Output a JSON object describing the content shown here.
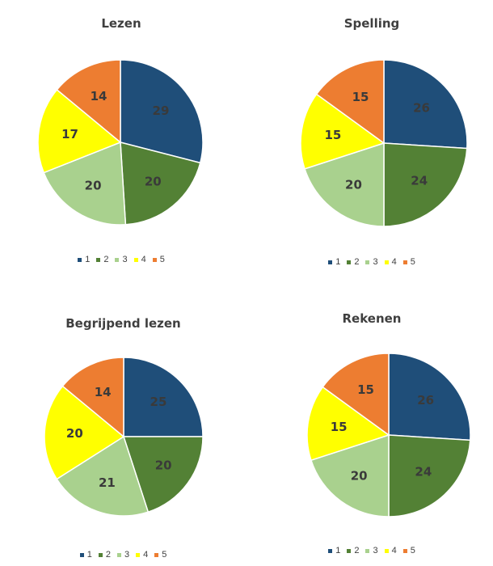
{
  "colors": {
    "1": "#1f4e79",
    "2": "#538135",
    "3": "#a9d18e",
    "4": "#ffff00",
    "5": "#ed7d31"
  },
  "legend_labels": [
    "1",
    "2",
    "3",
    "4",
    "5"
  ],
  "chart_data": [
    {
      "type": "pie",
      "title": "Lezen",
      "categories": [
        "1",
        "2",
        "3",
        "4",
        "5"
      ],
      "values": [
        29,
        20,
        20,
        17,
        14
      ]
    },
    {
      "type": "pie",
      "title": "Spelling",
      "categories": [
        "1",
        "2",
        "3",
        "4",
        "5"
      ],
      "values": [
        26,
        24,
        20,
        15,
        15
      ]
    },
    {
      "type": "pie",
      "title": "Begrijpend lezen",
      "categories": [
        "1",
        "2",
        "3",
        "4",
        "5"
      ],
      "values": [
        25,
        20,
        21,
        20,
        14
      ]
    },
    {
      "type": "pie",
      "title": "Rekenen",
      "categories": [
        "1",
        "2",
        "3",
        "4",
        "5"
      ],
      "values": [
        26,
        24,
        20,
        15,
        15
      ]
    }
  ]
}
